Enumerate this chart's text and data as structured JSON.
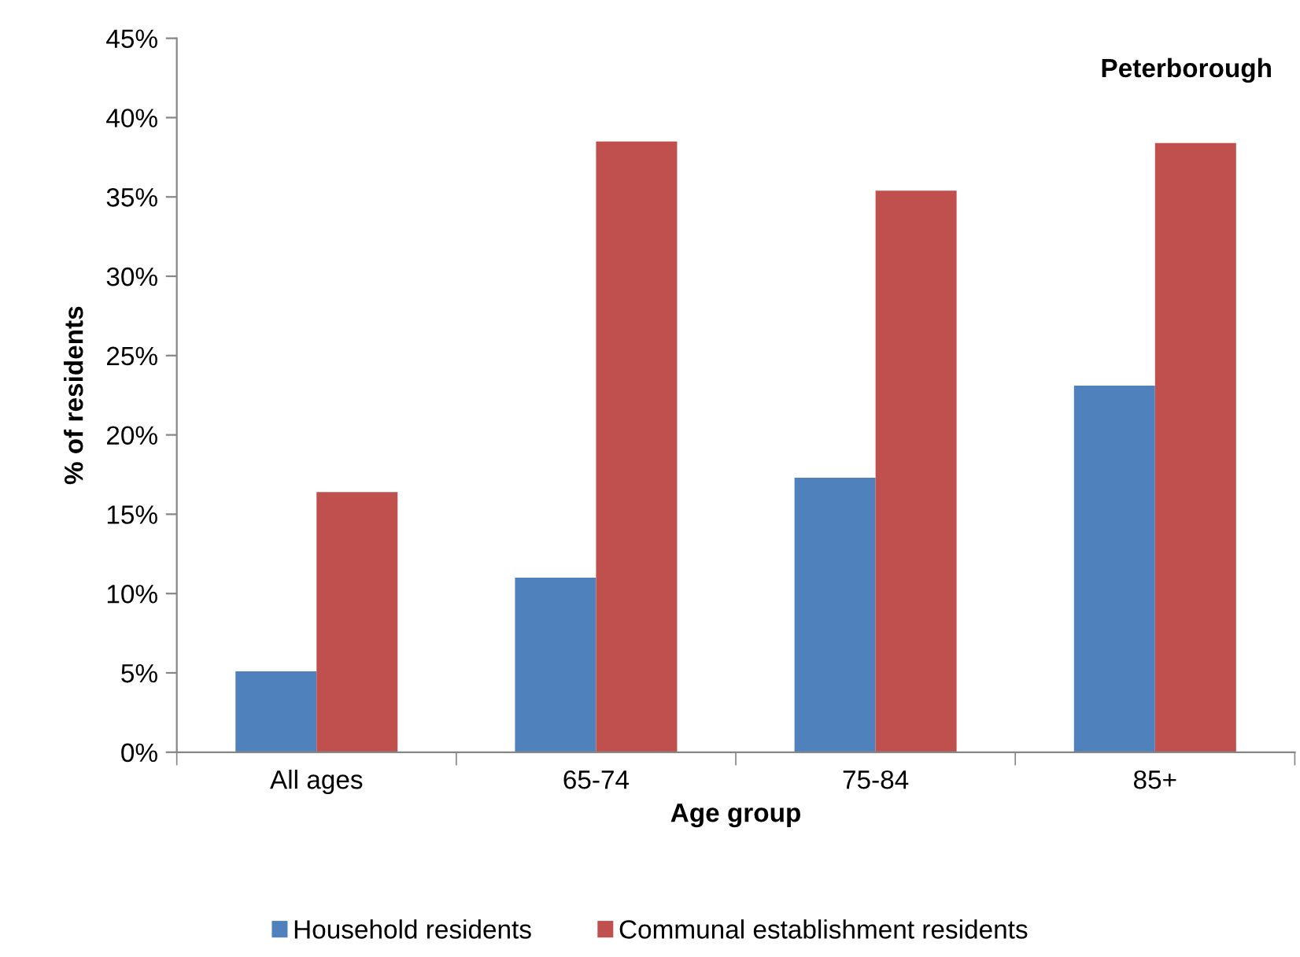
{
  "chart_data": {
    "type": "bar",
    "xlabel": "Age group",
    "ylabel": "% of residents",
    "categories": [
      "All ages",
      "65-74",
      "75-84",
      "85+"
    ],
    "series": [
      {
        "name": "Household residents",
        "color": "#4f81bd",
        "values": [
          5.1,
          11.0,
          17.3,
          23.1
        ]
      },
      {
        "name": "Communal establishment residents",
        "color": "#c0504d",
        "values": [
          16.4,
          38.5,
          35.4,
          38.4
        ]
      }
    ],
    "ylim": [
      0,
      45
    ],
    "yticks": [
      {
        "value": 0,
        "label": "0%"
      },
      {
        "value": 5,
        "label": "5%"
      },
      {
        "value": 10,
        "label": "10%"
      },
      {
        "value": 15,
        "label": "15%"
      },
      {
        "value": 20,
        "label": "20%"
      },
      {
        "value": 25,
        "label": "25%"
      },
      {
        "value": 30,
        "label": "30%"
      },
      {
        "value": 35,
        "label": "35%"
      },
      {
        "value": 40,
        "label": "40%"
      },
      {
        "value": 45,
        "label": "45%"
      }
    ],
    "annotations": [
      "Peterborough"
    ],
    "grid": false,
    "legend": "bottom"
  }
}
